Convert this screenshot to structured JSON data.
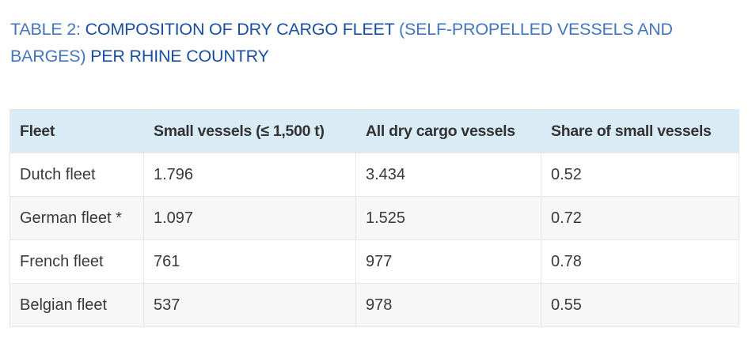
{
  "title": {
    "part1_light": "TABLE 2: ",
    "part2": "COMPOSITION OF DRY CARGO FLEET ",
    "part3_light": "(SELF-PROPELLED VESSELS AND BARGES) ",
    "part4": "PER RHINE COUNTRY"
  },
  "table": {
    "headers": [
      "Fleet",
      "Small vessels (≤ 1,500 t)",
      "All dry cargo vessels",
      "Share of small vessels"
    ],
    "rows": [
      [
        "Dutch fleet",
        "1.796",
        "3.434",
        "0.52"
      ],
      [
        "German fleet *",
        "1.097",
        "1.525",
        "0.72"
      ],
      [
        "French fleet",
        "761",
        "977",
        "0.78"
      ],
      [
        "Belgian fleet",
        "537",
        "978",
        "0.55"
      ]
    ]
  }
}
